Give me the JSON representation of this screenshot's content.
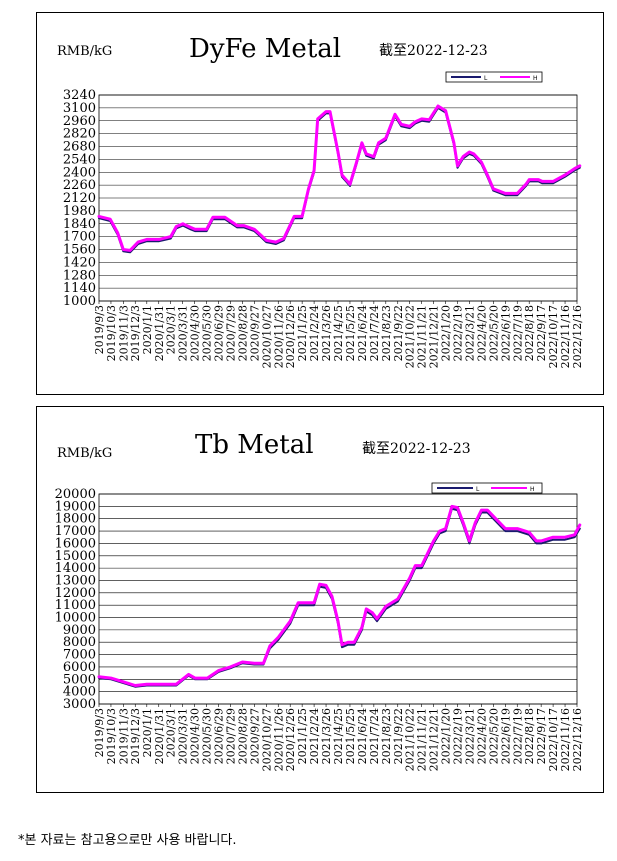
{
  "footnote": "*본 자료는 참고용으로만 사용 바랍니다.",
  "colors": {
    "series_L": "#1a1a6e",
    "series_H": "#ff00ff",
    "grid": "#000000",
    "plot_bg": "#ffffff"
  },
  "chart_data": [
    {
      "type": "line",
      "title": "DyFe Metal",
      "unit_label": "RMB/kG",
      "date_label": "截至2022-12-23",
      "ylim": [
        1000,
        3240
      ],
      "yticks": [
        1000,
        1140,
        1280,
        1420,
        1560,
        1700,
        1840,
        1980,
        2120,
        2260,
        2400,
        2540,
        2680,
        2820,
        2960,
        3100,
        3240
      ],
      "grid": true,
      "legend": "top-right",
      "legend_labels": [
        "L",
        "H"
      ],
      "xticks": [
        "2019/9/3",
        "2019/10/3",
        "2019/11/3",
        "2019/12/3",
        "2020/1/1",
        "2020/1/31",
        "2020/3/1",
        "2020/3/31",
        "2020/4/30",
        "2020/5/30",
        "2020/6/29",
        "2020/7/29",
        "2020/8/28",
        "2020/9/27",
        "2020/10/27",
        "2020/11/26",
        "2020/12/26",
        "2021/1/25",
        "2021/2/24",
        "2021/3/26",
        "2021/4/25",
        "2021/5/25",
        "2021/6/24",
        "2021/7/24",
        "2021/8/23",
        "2021/9/22",
        "2021/10/22",
        "2021/11/21",
        "2021/12/21",
        "2022/1/20",
        "2022/2/19",
        "2022/3/21",
        "2022/4/20",
        "2022/5/20",
        "2022/6/19",
        "2022/7/19",
        "2022/8/18",
        "2022/9/17",
        "2022/10/17",
        "2022/11/16",
        "2022/12/16"
      ],
      "x": [
        "2019-09-03",
        "2019-10-01",
        "2019-10-20",
        "2019-11-03",
        "2019-11-20",
        "2019-12-10",
        "2020-01-01",
        "2020-02-01",
        "2020-03-01",
        "2020-03-15",
        "2020-04-01",
        "2020-04-20",
        "2020-05-01",
        "2020-05-30",
        "2020-06-15",
        "2020-07-15",
        "2020-08-15",
        "2020-09-01",
        "2020-09-27",
        "2020-10-15",
        "2020-10-27",
        "2020-11-20",
        "2020-12-10",
        "2021-01-05",
        "2021-01-25",
        "2021-02-10",
        "2021-02-24",
        "2021-03-05",
        "2021-03-26",
        "2021-04-05",
        "2021-04-25",
        "2021-05-05",
        "2021-05-15",
        "2021-05-25",
        "2021-06-10",
        "2021-06-24",
        "2021-07-05",
        "2021-07-24",
        "2021-08-05",
        "2021-08-23",
        "2021-09-15",
        "2021-10-01",
        "2021-10-22",
        "2021-11-05",
        "2021-11-21",
        "2021-12-10",
        "2022-01-01",
        "2022-01-20",
        "2022-02-10",
        "2022-02-19",
        "2022-03-05",
        "2022-03-21",
        "2022-04-01",
        "2022-04-20",
        "2022-05-05",
        "2022-05-20",
        "2022-06-19",
        "2022-07-19",
        "2022-08-10",
        "2022-08-18",
        "2022-09-10",
        "2022-09-20",
        "2022-10-17",
        "2022-11-16",
        "2022-12-10",
        "2022-12-23"
      ],
      "series": [
        {
          "name": "L",
          "values": [
            1900,
            1870,
            1720,
            1540,
            1530,
            1620,
            1650,
            1650,
            1680,
            1790,
            1820,
            1780,
            1760,
            1760,
            1890,
            1890,
            1800,
            1800,
            1760,
            1690,
            1640,
            1620,
            1660,
            1900,
            1900,
            2200,
            2400,
            2960,
            3040,
            3040,
            2600,
            2350,
            2300,
            2250,
            2480,
            2700,
            2580,
            2550,
            2700,
            2750,
            3010,
            2900,
            2880,
            2930,
            2960,
            2950,
            3100,
            3050,
            2700,
            2450,
            2550,
            2600,
            2580,
            2490,
            2350,
            2200,
            2150,
            2150,
            2250,
            2300,
            2300,
            2280,
            2280,
            2350,
            2420,
            2450
          ]
        },
        {
          "name": "H",
          "values": [
            1920,
            1890,
            1740,
            1560,
            1550,
            1640,
            1670,
            1670,
            1700,
            1810,
            1840,
            1800,
            1780,
            1780,
            1910,
            1910,
            1820,
            1820,
            1780,
            1710,
            1660,
            1640,
            1680,
            1920,
            1920,
            2220,
            2420,
            2980,
            3060,
            3060,
            2620,
            2370,
            2320,
            2270,
            2500,
            2720,
            2600,
            2570,
            2720,
            2770,
            3030,
            2920,
            2900,
            2950,
            2980,
            2970,
            3120,
            3070,
            2720,
            2470,
            2570,
            2620,
            2600,
            2510,
            2370,
            2220,
            2170,
            2170,
            2270,
            2320,
            2320,
            2300,
            2300,
            2370,
            2440,
            2470
          ]
        }
      ]
    },
    {
      "type": "line",
      "title": "Tb Metal",
      "unit_label": "RMB/kG",
      "date_label": "截至2022-12-23",
      "ylim": [
        3000,
        20000
      ],
      "yticks": [
        3000,
        4000,
        5000,
        6000,
        7000,
        8000,
        9000,
        10000,
        11000,
        12000,
        13000,
        14000,
        15000,
        16000,
        17000,
        18000,
        19000,
        20000
      ],
      "grid": true,
      "legend": "top-right",
      "legend_labels": [
        "L",
        "H"
      ],
      "xticks": [
        "2019/9/3",
        "2019/10/3",
        "2019/11/3",
        "2019/12/3",
        "2020/1/1",
        "2020/1/31",
        "2020/3/1",
        "2020/3/31",
        "2020/4/30",
        "2020/5/30",
        "2020/6/29",
        "2020/7/29",
        "2020/8/28",
        "2020/9/27",
        "2020/10/27",
        "2020/11/26",
        "2020/12/26",
        "2021/1/25",
        "2021/2/24",
        "2021/3/26",
        "2021/4/25",
        "2021/5/25",
        "2021/6/24",
        "2021/7/24",
        "2021/8/23",
        "2021/9/22",
        "2021/10/22",
        "2021/11/21",
        "2021/12/21",
        "2022/1/20",
        "2022/2/19",
        "2022/3/21",
        "2022/4/20",
        "2022/5/20",
        "2022/6/19",
        "2022/7/19",
        "2022/8/18",
        "2022/9/17",
        "2022/10/17",
        "2022/11/16",
        "2022/12/16"
      ],
      "x": [
        "2019-09-03",
        "2019-10-03",
        "2019-11-03",
        "2019-12-03",
        "2020-01-01",
        "2020-02-15",
        "2020-03-15",
        "2020-04-15",
        "2020-05-01",
        "2020-06-01",
        "2020-06-29",
        "2020-07-29",
        "2020-08-28",
        "2020-09-27",
        "2020-10-20",
        "2020-11-05",
        "2020-11-26",
        "2020-12-26",
        "2021-01-15",
        "2021-02-24",
        "2021-03-10",
        "2021-03-26",
        "2021-04-10",
        "2021-04-25",
        "2021-05-05",
        "2021-05-20",
        "2021-06-05",
        "2021-06-24",
        "2021-07-05",
        "2021-07-20",
        "2021-08-01",
        "2021-08-23",
        "2021-09-22",
        "2021-10-22",
        "2021-11-05",
        "2021-11-21",
        "2021-12-21",
        "2022-01-05",
        "2022-01-20",
        "2022-02-05",
        "2022-02-19",
        "2022-03-05",
        "2022-03-21",
        "2022-04-05",
        "2022-04-20",
        "2022-05-05",
        "2022-05-20",
        "2022-06-19",
        "2022-07-19",
        "2022-08-18",
        "2022-09-05",
        "2022-09-17",
        "2022-10-17",
        "2022-11-16",
        "2022-12-10",
        "2022-12-23"
      ],
      "series": [
        {
          "name": "L",
          "values": [
            5100,
            5000,
            4700,
            4400,
            4500,
            4500,
            4500,
            5300,
            5000,
            5000,
            5600,
            5900,
            6300,
            6200,
            6200,
            7500,
            8200,
            9500,
            11000,
            11000,
            12500,
            12400,
            11500,
            9500,
            7600,
            7800,
            7800,
            9000,
            10500,
            10200,
            9700,
            10700,
            11300,
            13000,
            14000,
            14000,
            16000,
            16800,
            17000,
            18800,
            18700,
            17500,
            16000,
            17500,
            18500,
            18500,
            18000,
            17000,
            17000,
            16700,
            16000,
            16000,
            16300,
            16300,
            16500,
            17200
          ]
        },
        {
          "name": "H",
          "values": [
            5200,
            5100,
            4800,
            4500,
            4600,
            4600,
            4600,
            5400,
            5100,
            5100,
            5700,
            6000,
            6400,
            6300,
            6300,
            7700,
            8400,
            9700,
            11200,
            11200,
            12700,
            12600,
            11700,
            9700,
            7800,
            8000,
            8000,
            9200,
            10700,
            10400,
            9900,
            10900,
            11500,
            13200,
            14200,
            14200,
            16200,
            17000,
            17200,
            19000,
            18900,
            17700,
            16200,
            17700,
            18700,
            18700,
            18200,
            17200,
            17200,
            16900,
            16200,
            16200,
            16500,
            16500,
            16700,
            17500
          ]
        }
      ]
    }
  ]
}
